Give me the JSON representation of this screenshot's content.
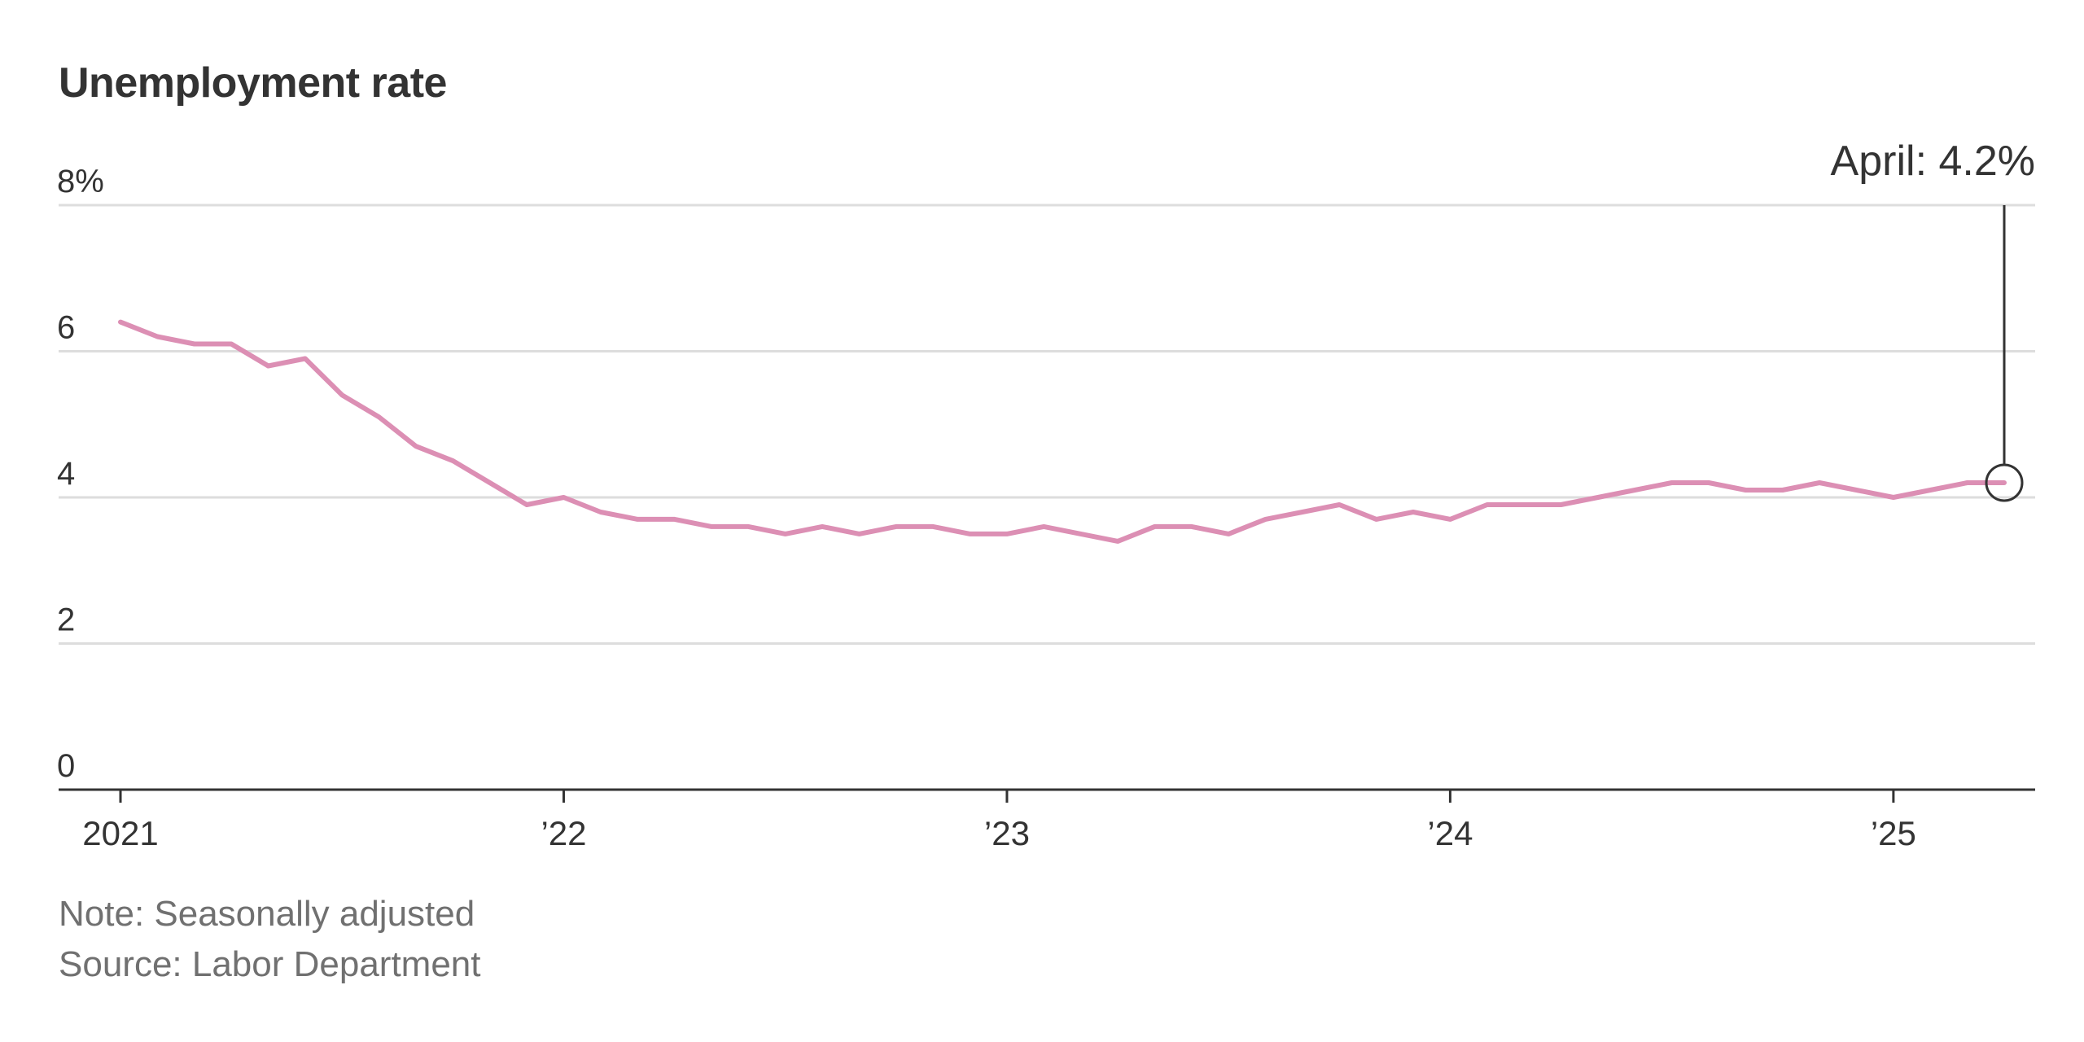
{
  "title": "Unemployment rate",
  "note": "Note: Seasonally adjusted",
  "source": "Source: Labor Department",
  "annotation": {
    "label": "April: 4.2%",
    "x": "2025-04",
    "y": 4.2
  },
  "colors": {
    "line": "#dc8fb4",
    "grid": "#dddddd",
    "axis": "#333333",
    "text": "#333333",
    "footer": "#707070"
  },
  "chart_data": {
    "type": "line",
    "title": "Unemployment rate",
    "xlabel": "",
    "ylabel": "",
    "ylim": [
      0,
      8
    ],
    "xlim": [
      "2021-01",
      "2025-04"
    ],
    "y_ticks": [
      {
        "value": 0,
        "label": "0"
      },
      {
        "value": 2,
        "label": "2"
      },
      {
        "value": 4,
        "label": "4"
      },
      {
        "value": 6,
        "label": "6"
      },
      {
        "value": 8,
        "label": "8%"
      }
    ],
    "x_ticks": [
      {
        "value": "2021-01",
        "label": "2021"
      },
      {
        "value": "2022-01",
        "label": "’22"
      },
      {
        "value": "2023-01",
        "label": "’23"
      },
      {
        "value": "2024-01",
        "label": "’24"
      },
      {
        "value": "2025-01",
        "label": "’25"
      }
    ],
    "grid": true,
    "series": [
      {
        "x": [
          "2021-01",
          "2021-02",
          "2021-03",
          "2021-04",
          "2021-05",
          "2021-06",
          "2021-07",
          "2021-08",
          "2021-09",
          "2021-10",
          "2021-11",
          "2021-12",
          "2022-01",
          "2022-02",
          "2022-03",
          "2022-04",
          "2022-05",
          "2022-06",
          "2022-07",
          "2022-08",
          "2022-09",
          "2022-10",
          "2022-11",
          "2022-12",
          "2023-01",
          "2023-02",
          "2023-03",
          "2023-04",
          "2023-05",
          "2023-06",
          "2023-07",
          "2023-08",
          "2023-09",
          "2023-10",
          "2023-11",
          "2023-12",
          "2024-01",
          "2024-02",
          "2024-03",
          "2024-04",
          "2024-05",
          "2024-06",
          "2024-07",
          "2024-08",
          "2024-09",
          "2024-10",
          "2024-11",
          "2024-12",
          "2025-01",
          "2025-02",
          "2025-03",
          "2025-04"
        ],
        "values": [
          6.4,
          6.2,
          6.1,
          6.1,
          5.8,
          5.9,
          5.4,
          5.1,
          4.7,
          4.5,
          4.2,
          3.9,
          4.0,
          3.8,
          3.7,
          3.7,
          3.6,
          3.6,
          3.5,
          3.6,
          3.5,
          3.6,
          3.6,
          3.5,
          3.5,
          3.6,
          3.5,
          3.4,
          3.6,
          3.6,
          3.5,
          3.7,
          3.8,
          3.9,
          3.7,
          3.8,
          3.7,
          3.9,
          3.9,
          3.9,
          4.0,
          4.1,
          4.2,
          4.2,
          4.1,
          4.1,
          4.2,
          4.1,
          4.0,
          4.1,
          4.2,
          4.2
        ]
      }
    ]
  }
}
